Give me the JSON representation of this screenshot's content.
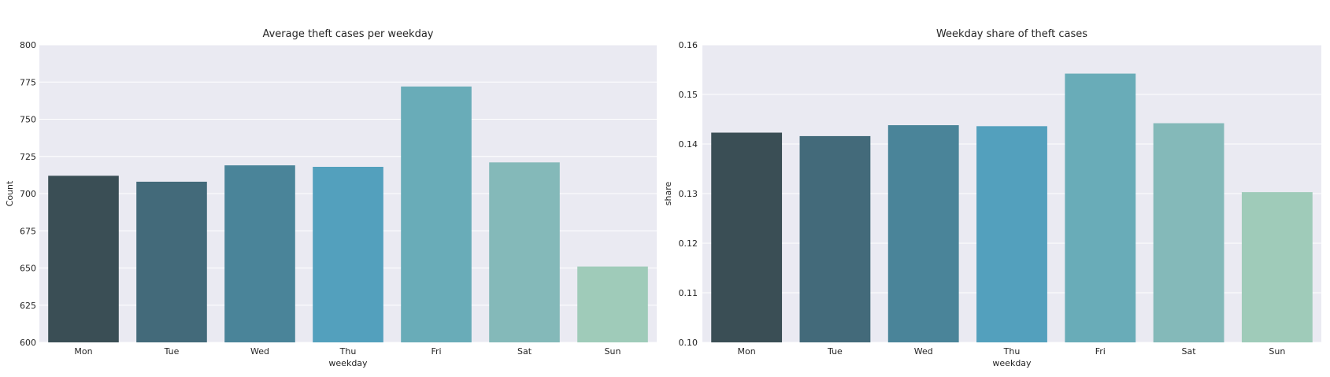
{
  "chart_data": [
    {
      "type": "bar",
      "title": "Average theft cases per weekday",
      "xlabel": "weekday",
      "ylabel": "Count",
      "categories": [
        "Mon",
        "Tue",
        "Wed",
        "Thu",
        "Fri",
        "Sat",
        "Sun"
      ],
      "values": [
        712,
        708,
        719,
        718,
        772,
        721,
        651
      ],
      "ylim": [
        600,
        800
      ],
      "yticks": [
        600,
        625,
        650,
        675,
        700,
        725,
        750,
        775,
        800
      ],
      "ytick_labels": [
        "600",
        "625",
        "650",
        "675",
        "700",
        "725",
        "750",
        "775",
        "800"
      ],
      "colors": [
        "#3a4e55",
        "#436a7a",
        "#4a8499",
        "#53a0bd",
        "#69acb8",
        "#84b9b9",
        "#9fcbb9"
      ],
      "grid": true,
      "legend": "none"
    },
    {
      "type": "bar",
      "title": "Weekday share of theft cases",
      "xlabel": "weekday",
      "ylabel": "share",
      "categories": [
        "Mon",
        "Tue",
        "Wed",
        "Thu",
        "Fri",
        "Sat",
        "Sun"
      ],
      "values": [
        0.1423,
        0.1416,
        0.1438,
        0.1436,
        0.1542,
        0.1442,
        0.1303
      ],
      "ylim": [
        0.1,
        0.16
      ],
      "yticks": [
        0.1,
        0.11,
        0.12,
        0.13,
        0.14,
        0.15,
        0.16
      ],
      "ytick_labels": [
        "0.10",
        "0.11",
        "0.12",
        "0.13",
        "0.14",
        "0.15",
        "0.16"
      ],
      "colors": [
        "#3a4e55",
        "#436a7a",
        "#4a8499",
        "#53a0bd",
        "#69acb8",
        "#84b9b9",
        "#9fcbb9"
      ],
      "grid": true,
      "legend": "none"
    }
  ]
}
